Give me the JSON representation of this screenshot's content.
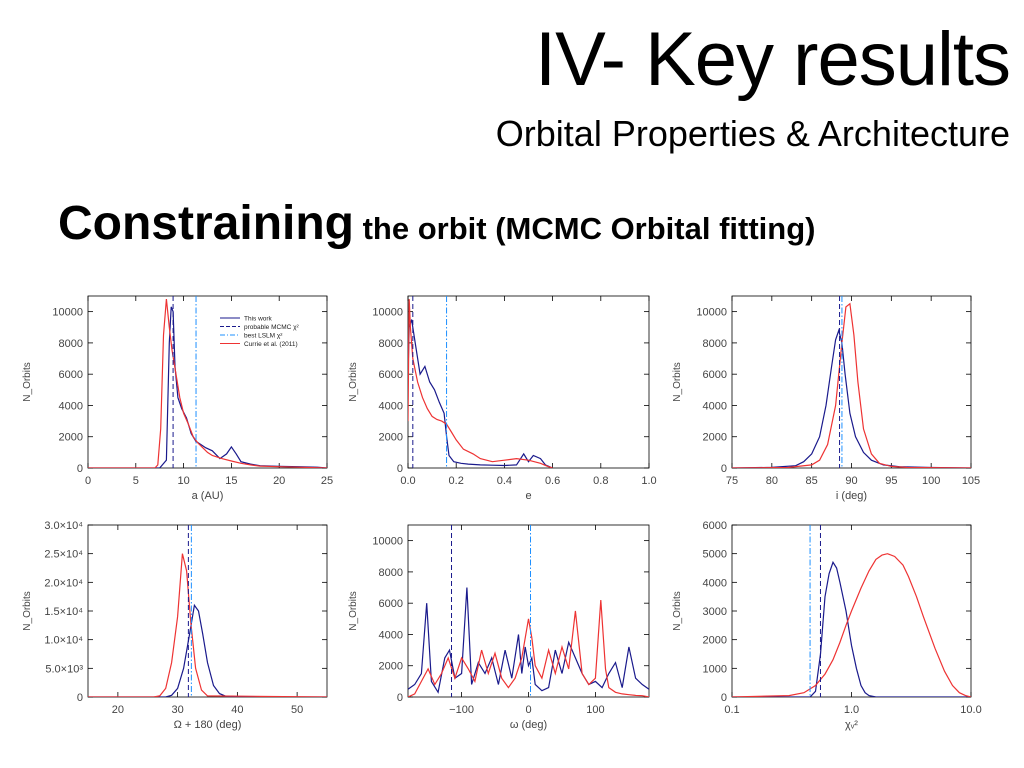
{
  "slide": {
    "title": "IV- Key results",
    "subtitle": "Orbital Properties & Architecture",
    "heading_main": "Constraining",
    "heading_rest": " the orbit (MCMC Orbital fitting)"
  },
  "colors": {
    "this_work": "#1a1a8c",
    "currie": "#ee3333",
    "mcmc_line": "#1a1a8c",
    "lsqm_line": "#1e90ff"
  },
  "legend": {
    "entries": [
      "This work",
      "probable MCMC χ²",
      "best LSLM χ²",
      "Currie et al. (2011)"
    ]
  },
  "chart_data": [
    {
      "id": "a",
      "type": "line",
      "xlabel": "a (AU)",
      "ylabel": "N_Orbits",
      "xlim": [
        0,
        25
      ],
      "ylim": [
        0,
        11000
      ],
      "xticks": [
        0,
        5,
        10,
        15,
        20,
        25
      ],
      "xtick_labels": [
        "0",
        "5",
        "10",
        "15",
        "20",
        "25"
      ],
      "yticks": [
        0,
        2000,
        4000,
        6000,
        8000,
        10000
      ],
      "ytick_labels": [
        "0",
        "2000",
        "4000",
        "6000",
        "8000",
        "10000"
      ],
      "vlines": [
        {
          "x": 8.9,
          "style": "dash"
        },
        {
          "x": 11.3,
          "style": "dashdot"
        }
      ],
      "series": [
        {
          "name": "This work",
          "color": "#1a1a8c",
          "x": [
            0,
            7.5,
            8.2,
            8.5,
            8.7,
            8.9,
            9.1,
            9.4,
            9.8,
            10.3,
            10.8,
            11.3,
            11.8,
            12.3,
            13.0,
            13.8,
            14.5,
            15.0,
            15.5,
            16.0,
            17.0,
            18.0,
            20.0,
            22.0,
            24.0,
            25.0
          ],
          "y": [
            0,
            0,
            500,
            8000,
            10300,
            10000,
            6500,
            4500,
            3800,
            3200,
            2200,
            1700,
            1500,
            1300,
            1100,
            600,
            900,
            1350,
            900,
            400,
            250,
            150,
            100,
            80,
            50,
            0
          ]
        },
        {
          "name": "Currie et al. (2011)",
          "color": "#ee3333",
          "x": [
            0,
            7.0,
            7.3,
            7.6,
            7.9,
            8.2,
            8.5,
            8.8,
            9.2,
            9.6,
            10.0,
            10.5,
            11.0,
            11.5,
            12.0,
            12.5,
            13.0,
            14.0,
            15.0,
            16.0,
            17.0,
            18.0,
            20.0,
            22.0,
            25.0
          ],
          "y": [
            0,
            0,
            200,
            2500,
            8500,
            10800,
            9000,
            7500,
            6000,
            4500,
            3500,
            2800,
            2000,
            1600,
            1300,
            1000,
            800,
            600,
            450,
            300,
            200,
            120,
            80,
            50,
            0
          ]
        }
      ]
    },
    {
      "id": "e",
      "type": "line",
      "xlabel": "e",
      "ylabel": "N_Orbits",
      "xlim": [
        0,
        1.0
      ],
      "ylim": [
        0,
        11000
      ],
      "xticks": [
        0,
        0.2,
        0.4,
        0.6,
        0.8,
        1.0
      ],
      "xtick_labels": [
        "0.0",
        "0.2",
        "0.4",
        "0.6",
        "0.8",
        "1.0"
      ],
      "yticks": [
        0,
        2000,
        4000,
        6000,
        8000,
        10000
      ],
      "ytick_labels": [
        "0",
        "2000",
        "4000",
        "6000",
        "8000",
        "10000"
      ],
      "vlines": [
        {
          "x": 0.02,
          "style": "dash"
        },
        {
          "x": 0.16,
          "style": "dashdot"
        }
      ],
      "series": [
        {
          "name": "This work",
          "color": "#1a1a8c",
          "x": [
            0,
            0.005,
            0.015,
            0.03,
            0.05,
            0.07,
            0.09,
            0.11,
            0.13,
            0.15,
            0.16,
            0.17,
            0.19,
            0.22,
            0.25,
            0.3,
            0.35,
            0.4,
            0.45,
            0.48,
            0.5,
            0.52,
            0.55,
            0.57,
            0.6
          ],
          "y": [
            6000,
            9000,
            9500,
            8000,
            6000,
            6500,
            5500,
            5000,
            4200,
            3500,
            2000,
            800,
            400,
            300,
            250,
            200,
            180,
            160,
            200,
            900,
            400,
            800,
            600,
            200,
            0
          ]
        },
        {
          "name": "Currie et al. (2011)",
          "color": "#ee3333",
          "x": [
            0,
            0.005,
            0.01,
            0.02,
            0.04,
            0.06,
            0.08,
            0.1,
            0.12,
            0.14,
            0.16,
            0.18,
            0.2,
            0.23,
            0.27,
            0.3,
            0.35,
            0.4,
            0.45,
            0.5,
            0.55,
            0.58,
            0.6
          ],
          "y": [
            3000,
            10800,
            9000,
            7000,
            5500,
            4500,
            3800,
            3300,
            3100,
            3000,
            2800,
            2300,
            1800,
            1200,
            900,
            600,
            400,
            500,
            600,
            500,
            300,
            100,
            0
          ]
        }
      ]
    },
    {
      "id": "i",
      "type": "line",
      "xlabel": "i (deg)",
      "ylabel": "N_Orbits",
      "xlim": [
        75,
        105
      ],
      "ylim": [
        0,
        11000
      ],
      "xticks": [
        75,
        80,
        85,
        90,
        95,
        100,
        105
      ],
      "xtick_labels": [
        "75",
        "80",
        "85",
        "90",
        "95",
        "100",
        "105"
      ],
      "yticks": [
        0,
        2000,
        4000,
        6000,
        8000,
        10000
      ],
      "ytick_labels": [
        "0",
        "2000",
        "4000",
        "6000",
        "8000",
        "10000"
      ],
      "vlines": [
        {
          "x": 88.5,
          "style": "dash"
        },
        {
          "x": 88.8,
          "style": "dashdot"
        }
      ],
      "series": [
        {
          "name": "This work",
          "color": "#1a1a8c",
          "x": [
            75,
            80,
            83,
            84,
            85,
            86,
            86.8,
            87.5,
            88,
            88.4,
            88.8,
            89.2,
            89.8,
            90.5,
            91.5,
            92.5,
            94,
            96,
            100,
            105
          ],
          "y": [
            0,
            40,
            150,
            400,
            900,
            2000,
            4000,
            6500,
            8200,
            8800,
            8000,
            6000,
            3500,
            2000,
            1000,
            500,
            200,
            80,
            30,
            0
          ]
        },
        {
          "name": "Currie et al. (2011)",
          "color": "#ee3333",
          "x": [
            75,
            82,
            85,
            86,
            87,
            88,
            88.8,
            89.3,
            89.8,
            90.3,
            90.8,
            91.5,
            92.5,
            93.5,
            95,
            97,
            105
          ],
          "y": [
            0,
            30,
            200,
            500,
            1500,
            4000,
            8000,
            10300,
            10500,
            8500,
            5500,
            2500,
            900,
            300,
            100,
            30,
            0
          ]
        }
      ]
    },
    {
      "id": "Omega",
      "type": "line",
      "xlabel": "Ω + 180 (deg)",
      "ylabel": "N_Orbits",
      "xlim": [
        15,
        55
      ],
      "ylim": [
        0,
        30000
      ],
      "xticks": [
        20,
        30,
        40,
        50
      ],
      "xtick_labels": [
        "20",
        "30",
        "40",
        "50"
      ],
      "yticks": [
        0,
        5000,
        10000,
        15000,
        20000,
        25000,
        30000
      ],
      "ytick_labels": [
        "0",
        "5.0×10³",
        "1.0×10⁴",
        "1.5×10⁴",
        "2.0×10⁴",
        "2.5×10⁴",
        "3.0×10⁴"
      ],
      "vlines": [
        {
          "x": 31.8,
          "style": "dash"
        },
        {
          "x": 32.3,
          "style": "dashdot"
        }
      ],
      "series": [
        {
          "name": "This work",
          "color": "#1a1a8c",
          "x": [
            15,
            28,
            29,
            30,
            31,
            32,
            32.8,
            33.5,
            34.2,
            35,
            36,
            37,
            38,
            40,
            55
          ],
          "y": [
            0,
            0,
            300,
            1500,
            5000,
            11000,
            16000,
            15000,
            11000,
            6000,
            2000,
            600,
            150,
            0,
            0
          ]
        },
        {
          "name": "Currie et al. (2011)",
          "color": "#ee3333",
          "x": [
            15,
            26,
            27,
            28,
            29,
            30,
            30.8,
            31.5,
            32.2,
            33,
            34,
            35,
            55
          ],
          "y": [
            0,
            0,
            200,
            1500,
            6000,
            14000,
            25000,
            22000,
            13000,
            5000,
            1200,
            200,
            0
          ]
        }
      ]
    },
    {
      "id": "omega",
      "type": "line",
      "xlabel": "ω (deg)",
      "ylabel": "N_Orbits",
      "xlim": [
        -180,
        180
      ],
      "ylim": [
        0,
        11000
      ],
      "xticks": [
        -100,
        0,
        100
      ],
      "xtick_labels": [
        "−100",
        "0",
        "100"
      ],
      "yticks": [
        0,
        2000,
        4000,
        6000,
        8000,
        10000
      ],
      "ytick_labels": [
        "0",
        "2000",
        "4000",
        "6000",
        "8000",
        "10000"
      ],
      "vlines": [
        {
          "x": -115,
          "style": "dash"
        },
        {
          "x": 3,
          "style": "dashdot"
        }
      ],
      "series": [
        {
          "name": "This work",
          "color": "#1a1a8c",
          "x": [
            -180,
            -170,
            -160,
            -152,
            -145,
            -135,
            -125,
            -118,
            -110,
            -100,
            -92,
            -85,
            -75,
            -65,
            -55,
            -45,
            -35,
            -25,
            -15,
            -10,
            -5,
            0,
            5,
            10,
            20,
            30,
            40,
            50,
            60,
            70,
            80,
            90,
            100,
            110,
            120,
            130,
            140,
            150,
            160,
            170,
            180
          ],
          "y": [
            500,
            800,
            1500,
            6000,
            1000,
            300,
            2500,
            3000,
            1200,
            1500,
            7000,
            800,
            2200,
            1500,
            2500,
            800,
            3000,
            1200,
            4000,
            1500,
            3200,
            2000,
            2500,
            800,
            400,
            600,
            3000,
            1500,
            3500,
            2500,
            1500,
            800,
            1000,
            600,
            1500,
            2200,
            600,
            3200,
            1200,
            800,
            500
          ]
        },
        {
          "name": "Currie et al. (2011)",
          "color": "#ee3333",
          "x": [
            -180,
            -170,
            -160,
            -150,
            -140,
            -130,
            -120,
            -110,
            -100,
            -90,
            -80,
            -70,
            -60,
            -50,
            -40,
            -30,
            -20,
            -10,
            0,
            5,
            10,
            20,
            30,
            40,
            50,
            60,
            70,
            80,
            90,
            100,
            108,
            115,
            120,
            130,
            140,
            150,
            160,
            170,
            180
          ],
          "y": [
            0,
            200,
            1000,
            1800,
            800,
            1500,
            2500,
            1200,
            2500,
            1800,
            1000,
            3000,
            1500,
            2800,
            1200,
            600,
            1200,
            2500,
            5000,
            3800,
            2000,
            1200,
            3000,
            1500,
            3200,
            1800,
            5500,
            1500,
            800,
            1200,
            6200,
            1800,
            600,
            300,
            200,
            150,
            100,
            80,
            0
          ]
        }
      ]
    },
    {
      "id": "chi2",
      "type": "line",
      "xlabel": "χᵥ²",
      "ylabel": "N_Orbits",
      "xscale": "log",
      "xlim": [
        0.1,
        10
      ],
      "ylim": [
        0,
        6000
      ],
      "xticks": [
        0.1,
        1.0,
        10.0
      ],
      "xtick_labels": [
        "0.1",
        "1.0",
        "10.0"
      ],
      "yticks": [
        0,
        1000,
        2000,
        3000,
        4000,
        5000,
        6000
      ],
      "ytick_labels": [
        "0",
        "1000",
        "2000",
        "3000",
        "4000",
        "5000",
        "6000"
      ],
      "vlines": [
        {
          "x": 0.55,
          "style": "dash"
        },
        {
          "x": 0.45,
          "style": "dashdot"
        }
      ],
      "series": [
        {
          "name": "This work",
          "color": "#1a1a8c",
          "x": [
            0.1,
            0.45,
            0.5,
            0.55,
            0.6,
            0.65,
            0.7,
            0.75,
            0.8,
            0.9,
            1.0,
            1.1,
            1.2,
            1.3,
            1.4,
            1.6,
            10
          ],
          "y": [
            0,
            0,
            200,
            1500,
            3500,
            4300,
            4700,
            4500,
            4000,
            3000,
            1800,
            1000,
            400,
            150,
            50,
            0,
            0
          ]
        },
        {
          "name": "Currie et al. (2011)",
          "color": "#ee3333",
          "x": [
            0.1,
            0.3,
            0.4,
            0.5,
            0.6,
            0.7,
            0.8,
            0.9,
            1.0,
            1.2,
            1.4,
            1.6,
            1.8,
            2.0,
            2.3,
            2.7,
            3.0,
            3.5,
            4.0,
            5.0,
            6.0,
            7.0,
            8.0,
            9.0,
            10.0
          ],
          "y": [
            0,
            50,
            150,
            400,
            800,
            1300,
            1900,
            2500,
            3000,
            3800,
            4400,
            4800,
            4950,
            5000,
            4900,
            4600,
            4200,
            3500,
            2800,
            1700,
            900,
            400,
            150,
            50,
            0
          ]
        }
      ]
    }
  ]
}
